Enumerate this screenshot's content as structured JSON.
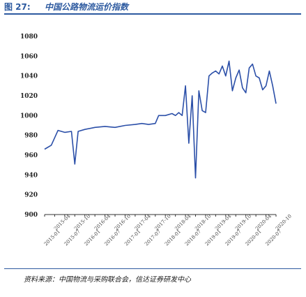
{
  "figure": {
    "number": "图 27:",
    "title": "中国公路物流运价指数",
    "source": "资料来源：中国物流与采购联合会，信达证券研发中心"
  },
  "colors": {
    "line": "#2b4fa8",
    "axis": "#333333",
    "accent": "#2d5aa0"
  },
  "chart_data": {
    "type": "line",
    "title": "",
    "xlabel": "",
    "ylabel": "",
    "ylim": [
      900,
      1080
    ],
    "yticks": [
      900,
      920,
      940,
      960,
      980,
      1000,
      1020,
      1040,
      1060,
      1080
    ],
    "grid": false,
    "legend": "none",
    "xtick_labels": [
      "2015-01",
      "2015-04",
      "2015-07",
      "2015-10",
      "2016-01",
      "2016-04",
      "2016-07",
      "2016-10",
      "2017-01",
      "2017-04",
      "2017-07",
      "2017-10",
      "2018-01",
      "2018-04",
      "2018-07",
      "2018-10",
      "2019-01",
      "2019-04",
      "2019-07",
      "2019-10",
      "2020-01",
      "2020-04",
      "2020-07",
      "2020-10"
    ],
    "x": [
      "2015-01",
      "2015-03",
      "2015-05",
      "2015-07",
      "2015-09",
      "2015-10",
      "2015-11",
      "2016-01",
      "2016-04",
      "2016-07",
      "2016-10",
      "2017-01",
      "2017-04",
      "2017-06",
      "2017-08",
      "2017-10",
      "2017-11",
      "2018-01",
      "2018-03",
      "2018-04",
      "2018-05",
      "2018-06",
      "2018-07",
      "2018-08",
      "2018-09",
      "2018-10",
      "2018-11",
      "2018-12",
      "2019-01",
      "2019-02",
      "2019-03",
      "2019-04",
      "2019-05",
      "2019-06",
      "2019-07",
      "2019-08",
      "2019-09",
      "2019-10",
      "2019-11",
      "2019-12",
      "2020-01",
      "2020-02",
      "2020-03",
      "2020-04",
      "2020-05",
      "2020-06",
      "2020-07",
      "2020-08",
      "2020-09",
      "2020-10"
    ],
    "series": [
      {
        "values": [
          966,
          970,
          985,
          983,
          984,
          951,
          984,
          986,
          988,
          989,
          988,
          990,
          991,
          992,
          991,
          992,
          1000,
          1000,
          1002,
          1000,
          1003,
          1000,
          1030,
          972,
          1020,
          937,
          1025,
          1005,
          1003,
          1040,
          1043,
          1045,
          1042,
          1050,
          1040,
          1055,
          1025,
          1038,
          1046,
          1028,
          1023,
          1048,
          1052,
          1040,
          1038,
          1026,
          1030,
          1045,
          1030,
          1012
        ]
      }
    ]
  }
}
